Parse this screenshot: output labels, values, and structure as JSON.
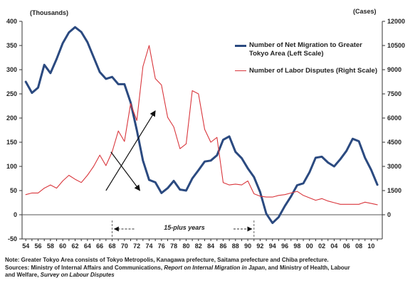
{
  "chart_data": {
    "type": "line",
    "left_unit": "(Thousands)",
    "right_unit": "(Cases)",
    "x_ticks": [
      "54",
      "56",
      "58",
      "60",
      "62",
      "64",
      "66",
      "68",
      "70",
      "72",
      "74",
      "76",
      "78",
      "80",
      "82",
      "84",
      "86",
      "88",
      "90",
      "92",
      "94",
      "96",
      "98",
      "00",
      "02",
      "04",
      "06",
      "08",
      "10"
    ],
    "x_range": [
      1954,
      2011
    ],
    "left_axis": {
      "min": -50,
      "max": 400,
      "ticks": [
        -50,
        0,
        50,
        100,
        150,
        200,
        250,
        300,
        350,
        400
      ]
    },
    "right_axis": {
      "min": -1500,
      "max": 12000,
      "ticks": [
        0,
        1500,
        3000,
        4500,
        6000,
        7500,
        9000,
        10500,
        12000
      ]
    },
    "series": [
      {
        "name": "Number of Net Migration to Greater Tokyo Area (Left Scale)",
        "axis": "left",
        "color": "#2b4a80",
        "points": [
          [
            1954,
            275
          ],
          [
            1955,
            252
          ],
          [
            1956,
            263
          ],
          [
            1957,
            310
          ],
          [
            1958,
            293
          ],
          [
            1959,
            322
          ],
          [
            1960,
            355
          ],
          [
            1961,
            377
          ],
          [
            1962,
            388
          ],
          [
            1963,
            378
          ],
          [
            1964,
            357
          ],
          [
            1965,
            326
          ],
          [
            1966,
            295
          ],
          [
            1967,
            281
          ],
          [
            1968,
            285
          ],
          [
            1969,
            270
          ],
          [
            1970,
            270
          ],
          [
            1971,
            232
          ],
          [
            1972,
            175
          ],
          [
            1973,
            112
          ],
          [
            1974,
            72
          ],
          [
            1975,
            67
          ],
          [
            1976,
            45
          ],
          [
            1977,
            55
          ],
          [
            1978,
            70
          ],
          [
            1979,
            52
          ],
          [
            1980,
            50
          ],
          [
            1981,
            75
          ],
          [
            1982,
            92
          ],
          [
            1983,
            110
          ],
          [
            1984,
            112
          ],
          [
            1985,
            123
          ],
          [
            1986,
            155
          ],
          [
            1987,
            162
          ],
          [
            1988,
            130
          ],
          [
            1989,
            117
          ],
          [
            1990,
            96
          ],
          [
            1991,
            78
          ],
          [
            1992,
            47
          ],
          [
            1993,
            2
          ],
          [
            1994,
            -17
          ],
          [
            1995,
            -5
          ],
          [
            1996,
            18
          ],
          [
            1997,
            38
          ],
          [
            1998,
            61
          ],
          [
            1999,
            65
          ],
          [
            2000,
            88
          ],
          [
            2001,
            118
          ],
          [
            2002,
            120
          ],
          [
            2003,
            108
          ],
          [
            2004,
            100
          ],
          [
            2005,
            115
          ],
          [
            2006,
            132
          ],
          [
            2007,
            157
          ],
          [
            2008,
            152
          ],
          [
            2009,
            118
          ],
          [
            2010,
            93
          ],
          [
            2011,
            62
          ]
        ]
      },
      {
        "name": "Number of Labor Disputes (Right Scale)",
        "axis": "right",
        "color": "#d9363c",
        "points": [
          [
            1954,
            1250
          ],
          [
            1955,
            1350
          ],
          [
            1956,
            1350
          ],
          [
            1957,
            1650
          ],
          [
            1958,
            1850
          ],
          [
            1959,
            1650
          ],
          [
            1960,
            2100
          ],
          [
            1961,
            2450
          ],
          [
            1962,
            2200
          ],
          [
            1963,
            2000
          ],
          [
            1964,
            2450
          ],
          [
            1965,
            3000
          ],
          [
            1966,
            3700
          ],
          [
            1967,
            3050
          ],
          [
            1968,
            3900
          ],
          [
            1969,
            5200
          ],
          [
            1970,
            4550
          ],
          [
            1971,
            6900
          ],
          [
            1972,
            5850
          ],
          [
            1973,
            9200
          ],
          [
            1974,
            10500
          ],
          [
            1975,
            8450
          ],
          [
            1976,
            8050
          ],
          [
            1977,
            6050
          ],
          [
            1978,
            5450
          ],
          [
            1979,
            4100
          ],
          [
            1980,
            4400
          ],
          [
            1981,
            7700
          ],
          [
            1982,
            7500
          ],
          [
            1983,
            5300
          ],
          [
            1984,
            4500
          ],
          [
            1985,
            4800
          ],
          [
            1986,
            2000
          ],
          [
            1987,
            1850
          ],
          [
            1988,
            1900
          ],
          [
            1989,
            1850
          ],
          [
            1990,
            2100
          ],
          [
            1991,
            1300
          ],
          [
            1992,
            1150
          ],
          [
            1993,
            1100
          ],
          [
            1994,
            1100
          ],
          [
            1995,
            1200
          ],
          [
            1996,
            1250
          ],
          [
            1997,
            1350
          ],
          [
            1998,
            1450
          ],
          [
            1999,
            1200
          ],
          [
            2000,
            1050
          ],
          [
            2001,
            900
          ],
          [
            2002,
            1000
          ],
          [
            2003,
            850
          ],
          [
            2004,
            750
          ],
          [
            2005,
            650
          ],
          [
            2006,
            650
          ],
          [
            2007,
            650
          ],
          [
            2008,
            650
          ],
          [
            2009,
            780
          ],
          [
            2010,
            700
          ],
          [
            2011,
            620
          ]
        ]
      }
    ],
    "arrows": [
      {
        "from": [
          1967.8,
          130
        ],
        "to": [
          1972.5,
          50
        ],
        "color": "#111111"
      },
      {
        "from": [
          1967,
          50
        ],
        "to": [
          1975,
          215
        ],
        "color": "#111111"
      }
    ],
    "period_bracket": {
      "from": 1968,
      "to": 1991,
      "label": "15-plus years"
    },
    "grid": false,
    "legend_position": "top-right"
  },
  "notes": {
    "line1": "Note: Greater Tokyo Area consists of Tokyo Metropolis, Kanagawa prefecture, Saitama prefecture and Chiba prefecture.",
    "line2_prefix": "Sources: Ministry of Internal Affairs and Communications,",
    "line2_report": "Report on Internal Migration in Japan",
    "line2_mid": ", and Ministry of Health, Labour",
    "line3_prefix": "and Welfare,",
    "line3_survey": "Survey on Labour Disputes"
  }
}
